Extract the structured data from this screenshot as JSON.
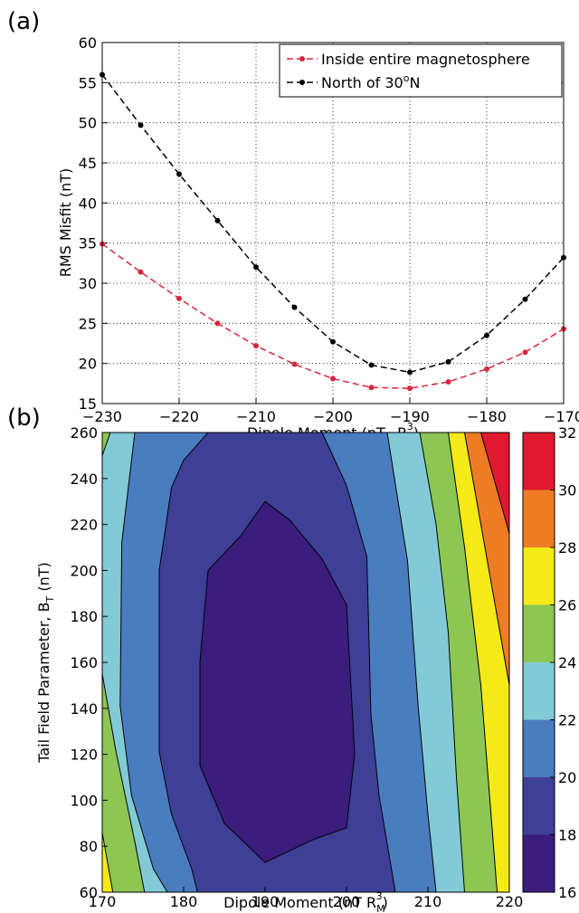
{
  "chart_data": [
    {
      "type": "line",
      "panel_label": "(a)",
      "xlabel": [
        "Dipole Moment (nT−R",
        "M",
        "3",
        ")"
      ],
      "ylabel": "RMS Misfit (nT)",
      "x": [
        -230,
        -225,
        -220,
        -215,
        -210,
        -205,
        -200,
        -195,
        -190,
        -185,
        -180,
        -175,
        -170
      ],
      "series": [
        {
          "name": "Inside entire magnetosphere",
          "color": "#d7263d",
          "values": [
            34.9,
            31.4,
            28.1,
            25.0,
            22.2,
            19.9,
            18.1,
            17.0,
            16.9,
            17.7,
            19.3,
            21.4,
            24.3
          ]
        },
        {
          "name": [
            "North of 30",
            "o",
            "N"
          ],
          "color": "#000000",
          "values": [
            56.0,
            49.7,
            43.6,
            37.8,
            32.0,
            27.0,
            22.7,
            19.8,
            18.9,
            20.2,
            23.5,
            28.0,
            33.2
          ]
        }
      ],
      "xlim": [
        -230,
        -170
      ],
      "xticks": [
        {
          "value": -230,
          "label": "−230"
        },
        {
          "value": -220,
          "label": "−220"
        },
        {
          "value": -210,
          "label": "−210"
        },
        {
          "value": -200,
          "label": "−200"
        },
        {
          "value": -190,
          "label": "−190"
        },
        {
          "value": -180,
          "label": "−180"
        },
        {
          "value": -170,
          "label": "−170"
        }
      ],
      "ylim": [
        15,
        60
      ],
      "yticks": [
        15,
        20,
        25,
        30,
        35,
        40,
        45,
        50,
        55,
        60
      ],
      "grid": true,
      "legend": "upper right"
    },
    {
      "type": "contour",
      "panel_label": "(b)",
      "xlabel": [
        "Dipole Moment (nT R",
        "M",
        "3",
        ")"
      ],
      "ylabel": [
        "Tail Field Parameter, B",
        "T",
        " (nT)"
      ],
      "xlim": [
        170,
        220
      ],
      "xticks": [
        170,
        180,
        190,
        200,
        210,
        220
      ],
      "ylim": [
        60,
        260
      ],
      "yticks": [
        60,
        80,
        100,
        120,
        140,
        160,
        180,
        200,
        220,
        240,
        260
      ],
      "levels": [
        16,
        18,
        20,
        22,
        24,
        26,
        28,
        30,
        32
      ],
      "colors": [
        "#3a1d7c",
        "#3e3f97",
        "#4a7cc0",
        "#82cbd6",
        "#8dc653",
        "#f4ea17",
        "#ed7c24",
        "#e1192e"
      ],
      "regions": [
        {
          "level": 30,
          "x": [
            170,
            216.5,
            218.5,
            220,
            220,
            170
          ],
          "y": [
            260,
            260,
            235,
            216,
            60,
            60
          ]
        },
        {
          "level": 28,
          "x": [
            170,
            214.5,
            216.5,
            218.5,
            220,
            220,
            170
          ],
          "y": [
            260,
            260,
            220,
            180,
            150,
            60,
            60
          ]
        },
        {
          "level": 26,
          "x": [
            170,
            212.5,
            214.5,
            216.5,
            218.5,
            171.3,
            170
          ],
          "y": [
            260,
            260,
            210,
            150,
            60,
            60,
            86
          ]
        },
        {
          "level": 24,
          "x": [
            171,
            209,
            211,
            212.5,
            213.5,
            214.5,
            175.2,
            174,
            171.7,
            170,
            170
          ],
          "y": [
            260,
            260,
            220,
            173,
            110,
            60,
            60,
            82,
            121,
            155,
            250
          ]
        },
        {
          "level": 22,
          "x": [
            174,
            205,
            207.5,
            208.8,
            210,
            211,
            178,
            176.3,
            173.6,
            172.2,
            172.4
          ],
          "y": [
            260,
            260,
            204,
            141,
            94,
            60,
            60,
            70,
            102,
            141,
            212
          ]
        },
        {
          "level": 20,
          "x": [
            183,
            197,
            200,
            202.5,
            203,
            204,
            206,
            181.7,
            181,
            178.5,
            177,
            177,
            178.5,
            180
          ],
          "y": [
            260,
            260,
            237,
            206,
            137,
            102,
            60,
            60,
            70,
            94,
            121,
            200,
            236,
            248
          ]
        },
        {
          "level": 18,
          "x": [
            190,
            193,
            197,
            200,
            201,
            200,
            196,
            190,
            185,
            182,
            182,
            183,
            187
          ],
          "y": [
            230,
            222,
            205,
            185,
            120,
            88,
            83,
            73,
            90,
            115,
            160,
            200,
            215
          ]
        }
      ],
      "colorbar_ticks": [
        16,
        18,
        20,
        22,
        24,
        26,
        28,
        30,
        32
      ]
    }
  ]
}
